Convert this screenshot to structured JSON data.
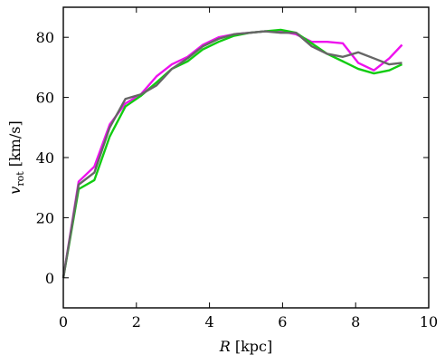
{
  "chart_data": {
    "type": "line",
    "xlabel_var": "R",
    "xlabel_unit": " [kpc]",
    "ylabel_var": "v",
    "ylabel_sub": "rot",
    "ylabel_unit": " [km/s]",
    "xlim": [
      0,
      10
    ],
    "ylim": [
      -10,
      90
    ],
    "xticks": [
      0,
      2,
      4,
      6,
      8,
      10
    ],
    "xtick_labels": [
      "0",
      "2",
      "4",
      "6",
      "8",
      "10"
    ],
    "yticks": [
      0,
      20,
      40,
      60,
      80
    ],
    "ytick_labels": [
      "0",
      "20",
      "40",
      "60",
      "80"
    ],
    "grid": false,
    "series": [
      {
        "color": "#ee11ee",
        "x": [
          0,
          0.42,
          0.85,
          1.27,
          1.7,
          2.12,
          2.55,
          2.97,
          3.4,
          3.82,
          4.25,
          4.67,
          5.1,
          5.52,
          5.95,
          6.37,
          6.8,
          7.22,
          7.65,
          8.07,
          8.5,
          8.92,
          9.27
        ],
        "y": [
          0,
          32,
          37,
          51,
          58,
          61,
          67,
          71,
          73.5,
          77.5,
          80,
          81,
          81.5,
          82,
          82,
          81,
          78.5,
          78.5,
          78,
          71.5,
          69,
          73,
          77.5
        ]
      },
      {
        "color": "#11cc11",
        "x": [
          0,
          0.42,
          0.85,
          1.27,
          1.7,
          2.12,
          2.55,
          2.97,
          3.4,
          3.82,
          4.25,
          4.67,
          5.1,
          5.52,
          5.95,
          6.37,
          6.8,
          7.22,
          7.65,
          8.07,
          8.5,
          8.92,
          9.27
        ],
        "y": [
          0,
          29.5,
          32.5,
          47,
          57,
          60.5,
          65,
          69.5,
          72,
          76,
          78.5,
          80.5,
          81.5,
          82,
          82.5,
          81.5,
          78,
          74.5,
          72,
          69.5,
          68,
          69,
          71
        ]
      },
      {
        "color": "#666666",
        "x": [
          0,
          0.42,
          0.85,
          1.27,
          1.7,
          2.12,
          2.55,
          2.97,
          3.4,
          3.82,
          4.25,
          4.67,
          5.1,
          5.52,
          5.95,
          6.37,
          6.8,
          7.22,
          7.65,
          8.07,
          8.5,
          8.92,
          9.27
        ],
        "y": [
          0,
          31,
          35,
          50,
          59.5,
          61,
          64,
          69.5,
          73,
          77,
          79.5,
          81,
          81.5,
          82,
          81.5,
          81.5,
          77,
          74.5,
          73.5,
          75,
          73,
          71,
          71.5
        ]
      }
    ]
  }
}
